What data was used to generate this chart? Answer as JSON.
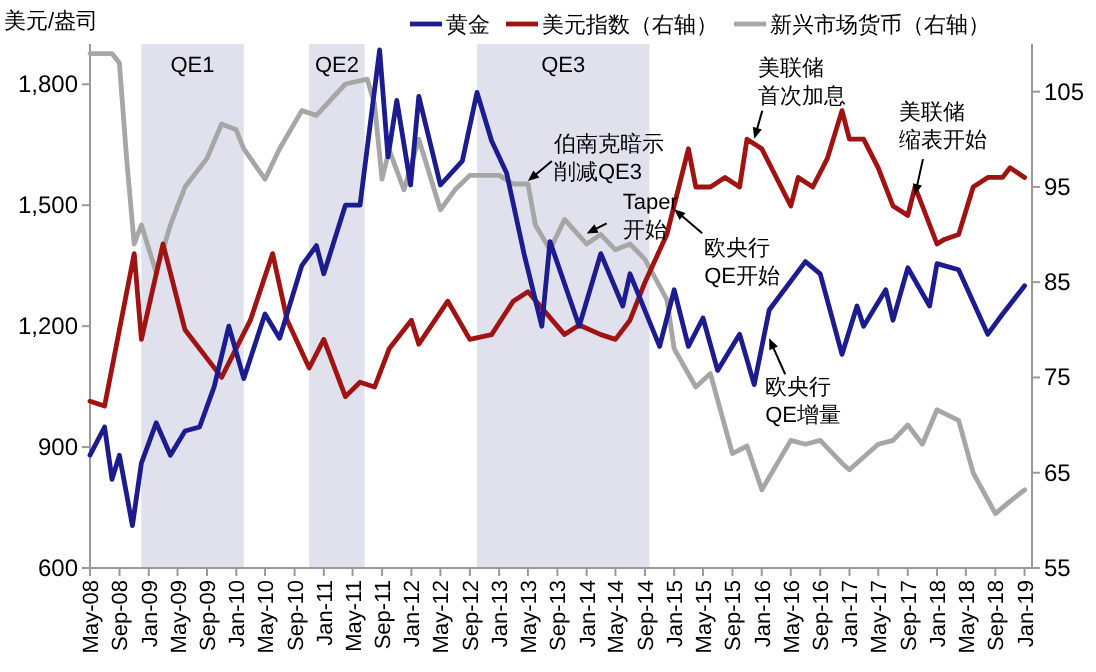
{
  "chart_data": {
    "type": "line",
    "ylabel": "美元/盎司",
    "legend": "top",
    "grid": false,
    "ylim": [
      600,
      1900
    ],
    "yticks": [
      600,
      900,
      {
        "value": 1200,
        "label": "1,200"
      },
      {
        "value": 1500,
        "label": "1,500"
      },
      {
        "value": 1800,
        "label": "1,800"
      }
    ],
    "y2lim": [
      55,
      110
    ],
    "y2ticks": [
      55,
      65,
      75,
      85,
      95,
      105
    ],
    "xlim": [
      "2008-05",
      "2019-02"
    ],
    "xticks": [
      {
        "value": "2008-05",
        "label": "May-08"
      },
      {
        "value": "2008-09",
        "label": "Sep-08"
      },
      {
        "value": "2009-01",
        "label": "Jan-09"
      },
      {
        "value": "2009-05",
        "label": "May-09"
      },
      {
        "value": "2009-09",
        "label": "Sep-09"
      },
      {
        "value": "2010-01",
        "label": "Jan-10"
      },
      {
        "value": "2010-05",
        "label": "May-10"
      },
      {
        "value": "2010-09",
        "label": "Sep-10"
      },
      {
        "value": "2011-01",
        "label": "Jan-11"
      },
      {
        "value": "2011-05",
        "label": "May-11"
      },
      {
        "value": "2011-09",
        "label": "Sep-11"
      },
      {
        "value": "2012-01",
        "label": "Jan-12"
      },
      {
        "value": "2012-05",
        "label": "May-12"
      },
      {
        "value": "2012-09",
        "label": "Sep-12"
      },
      {
        "value": "2013-01",
        "label": "Jan-13"
      },
      {
        "value": "2013-05",
        "label": "May-13"
      },
      {
        "value": "2013-09",
        "label": "Sep-13"
      },
      {
        "value": "2014-01",
        "label": "Jan-14"
      },
      {
        "value": "2014-05",
        "label": "May-14"
      },
      {
        "value": "2014-09",
        "label": "Sep-14"
      },
      {
        "value": "2015-01",
        "label": "Jan-15"
      },
      {
        "value": "2015-05",
        "label": "May-15"
      },
      {
        "value": "2015-09",
        "label": "Sep-15"
      },
      {
        "value": "2016-01",
        "label": "Jan-16"
      },
      {
        "value": "2016-05",
        "label": "May-16"
      },
      {
        "value": "2016-09",
        "label": "Sep-16"
      },
      {
        "value": "2017-01",
        "label": "Jan-17"
      },
      {
        "value": "2017-05",
        "label": "May-17"
      },
      {
        "value": "2017-09",
        "label": "Sep-17"
      },
      {
        "value": "2018-01",
        "label": "Jan-18"
      },
      {
        "value": "2018-05",
        "label": "May-18"
      },
      {
        "value": "2018-09",
        "label": "Sep-18"
      },
      {
        "value": "2019-01",
        "label": "Jan-19"
      }
    ],
    "bands": [
      {
        "axis": "x",
        "from": "2008-12",
        "to": "2010-02",
        "label": "QE1",
        "color": "#e1e1ee"
      },
      {
        "axis": "x",
        "from": "2010-11",
        "to": "2011-06-20",
        "label": "QE2",
        "color": "#e1e1ee"
      },
      {
        "axis": "x",
        "from": "2012-10",
        "to": "2014-09-20",
        "label": "QE3",
        "color": "#e1e1ee"
      }
    ],
    "series": [
      {
        "name": "黄金",
        "color": "#1c1c8f",
        "x": [
          "2008-05",
          "2008-07",
          "2008-08",
          "2008-09",
          "2008-10-25",
          "2008-12",
          "2009-02",
          "2009-04",
          "2009-06",
          "2009-08",
          "2009-10",
          "2009-12",
          "2010-02",
          "2010-05",
          "2010-07",
          "2010-10",
          "2010-12",
          "2011-01",
          "2011-04",
          "2011-06",
          "2011-08-22",
          "2011-09-26",
          "2011-11",
          "2011-12-29",
          "2012-02",
          "2012-05",
          "2012-08",
          "2012-10",
          "2012-12",
          "2013-02",
          "2013-04-15",
          "2013-06-28",
          "2013-08",
          "2013-12",
          "2014-03",
          "2014-06",
          "2014-07",
          "2014-11",
          "2015-01",
          "2015-03",
          "2015-05",
          "2015-07",
          "2015-10",
          "2015-12",
          "2016-02",
          "2016-07",
          "2016-09",
          "2016-12",
          "2017-02",
          "2017-03",
          "2017-06",
          "2017-07",
          "2017-09",
          "2017-12",
          "2018-01",
          "2018-04",
          "2018-08",
          "2018-10",
          "2019-01"
        ],
        "values": [
          880,
          950,
          820,
          880,
          705,
          860,
          960,
          880,
          940,
          950,
          1050,
          1200,
          1070,
          1230,
          1170,
          1350,
          1400,
          1330,
          1500,
          1500,
          1885,
          1620,
          1760,
          1550,
          1770,
          1550,
          1610,
          1780,
          1660,
          1580,
          1380,
          1200,
          1410,
          1200,
          1380,
          1250,
          1330,
          1150,
          1290,
          1150,
          1220,
          1090,
          1180,
          1055,
          1240,
          1360,
          1330,
          1130,
          1250,
          1200,
          1290,
          1215,
          1345,
          1250,
          1355,
          1340,
          1180,
          1230,
          1300
        ]
      },
      {
        "name": "美元指数（右轴）",
        "color": "#a01313",
        "axis": "y2",
        "x": [
          "2008-05",
          "2008-07",
          "2008-11",
          "2008-12",
          "2009-03",
          "2009-06",
          "2009-11",
          "2010-03",
          "2010-06",
          "2010-08",
          "2010-11",
          "2011-01",
          "2011-04",
          "2011-06",
          "2011-08",
          "2011-10",
          "2012-01",
          "2012-02",
          "2012-06",
          "2012-09",
          "2012-12",
          "2013-03",
          "2013-05",
          "2013-10",
          "2013-12",
          "2014-03",
          "2014-05",
          "2014-07",
          "2014-09",
          "2014-12",
          "2015-03",
          "2015-04",
          "2015-06",
          "2015-08",
          "2015-10",
          "2015-11",
          "2016-01",
          "2016-05",
          "2016-06",
          "2016-08",
          "2016-10",
          "2016-12",
          "2017-01",
          "2017-03",
          "2017-05",
          "2017-07",
          "2017-09",
          "2017-10",
          "2017-11",
          "2018-01",
          "2018-02",
          "2018-04",
          "2018-06",
          "2018-08",
          "2018-10",
          "2018-11",
          "2018-12",
          "2019-01"
        ],
        "values": [
          72.5,
          72,
          88,
          79,
          89,
          80,
          75,
          81,
          88,
          81,
          76,
          79,
          73,
          74.5,
          74,
          78,
          81,
          78.5,
          83,
          79,
          79.5,
          83,
          84,
          79.5,
          80.5,
          79.5,
          79,
          81,
          85,
          90,
          99,
          95,
          95,
          96,
          95,
          100,
          99,
          93,
          96,
          95,
          98,
          103,
          100,
          100,
          97,
          93,
          92,
          95,
          93,
          89,
          89.5,
          90,
          95,
          96,
          96,
          97,
          96.5,
          96
        ]
      },
      {
        "name": "新兴市场货币（右轴）",
        "color": "#a6a6a6",
        "axis": "y2",
        "x": [
          "2008-05",
          "2008-08",
          "2008-09",
          "2008-10",
          "2008-11",
          "2008-12",
          "2009-02",
          "2009-04",
          "2009-06",
          "2009-09",
          "2009-11",
          "2010-01",
          "2010-02",
          "2010-05",
          "2010-07",
          "2010-10",
          "2010-12",
          "2011-04",
          "2011-07",
          "2011-08",
          "2011-09",
          "2011-10",
          "2011-12",
          "2012-02",
          "2012-05",
          "2012-07",
          "2012-09",
          "2013-01",
          "2013-03",
          "2013-05",
          "2013-06",
          "2013-08",
          "2013-10",
          "2014-01",
          "2014-03",
          "2014-05",
          "2014-07",
          "2014-09",
          "2014-12",
          "2015-01",
          "2015-04",
          "2015-06",
          "2015-09",
          "2015-11",
          "2016-01",
          "2016-05",
          "2016-07",
          "2016-09",
          "2016-12",
          "2017-01",
          "2017-05",
          "2017-07",
          "2017-09",
          "2017-11",
          "2018-01",
          "2018-04",
          "2018-06",
          "2018-09",
          "2018-11",
          "2019-01"
        ],
        "values": [
          109,
          109,
          108,
          98,
          89,
          91,
          86,
          91,
          95,
          98,
          101.6,
          101,
          99,
          95.8,
          99,
          103,
          102.5,
          105.8,
          106.3,
          103.7,
          95.8,
          98.9,
          94.7,
          100,
          92.6,
          94.7,
          96.2,
          96.2,
          95.3,
          95.3,
          91,
          88.4,
          91.6,
          89,
          90,
          88.4,
          89,
          87.4,
          83.2,
          78,
          74,
          75.4,
          67,
          67.8,
          63.2,
          68.4,
          68,
          68.4,
          66,
          65.3,
          68,
          68.4,
          70,
          68,
          71.6,
          70.5,
          65,
          60.7,
          62,
          63.2
        ]
      }
    ],
    "annotations": [
      {
        "text": "伯南克暗示削减QE3",
        "x": "2013-05",
        "y": 1560
      },
      {
        "text": "Taper开始",
        "x": "2014-01",
        "y": 1430
      },
      {
        "text": "欧央行QE开始",
        "x": "2015-01",
        "y": 1490
      },
      {
        "text": "美联储首次加息",
        "x": "2015-12",
        "y": 1665
      },
      {
        "text": "美联储缩表开始",
        "x": "2017-10",
        "y": 1525
      },
      {
        "text": "欧央行QE增量",
        "x": "2016-02",
        "y": 1170
      }
    ]
  }
}
